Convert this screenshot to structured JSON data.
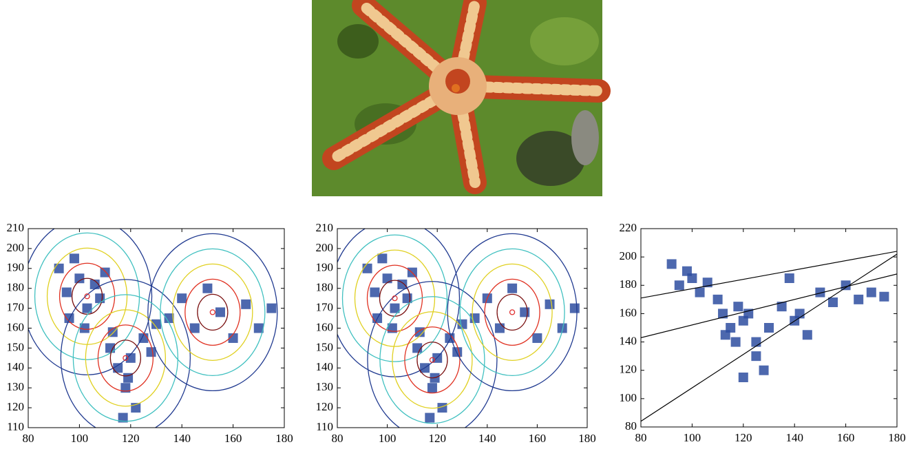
{
  "chart_data": [
    {
      "type": "scatter",
      "xlim": [
        80,
        180
      ],
      "ylim": [
        110,
        210
      ],
      "xticks": [
        80,
        100,
        120,
        140,
        160,
        180
      ],
      "yticks": [
        110,
        120,
        130,
        140,
        150,
        160,
        170,
        180,
        190,
        200,
        210
      ],
      "series": [
        {
          "color": "#2e4ea0",
          "mode": "points",
          "x": [
            92,
            95,
            98,
            100,
            103,
            106,
            108,
            96,
            102,
            110,
            112,
            115,
            118,
            120,
            122,
            125,
            117,
            119,
            113,
            128,
            135,
            140,
            145,
            150,
            155,
            160,
            165,
            170,
            175,
            130
          ],
          "y": [
            190,
            178,
            195,
            185,
            170,
            182,
            175,
            165,
            160,
            188,
            150,
            140,
            130,
            145,
            120,
            155,
            115,
            135,
            158,
            148,
            165,
            175,
            160,
            180,
            168,
            155,
            172,
            160,
            170,
            162
          ]
        },
        {
          "color": "#e03030",
          "mode": "centers",
          "x": [
            103,
            118,
            152
          ],
          "y": [
            176,
            145,
            168
          ]
        }
      ]
    },
    {
      "type": "scatter",
      "xlim": [
        80,
        180
      ],
      "ylim": [
        110,
        210
      ],
      "xticks": [
        80,
        100,
        120,
        140,
        160,
        180
      ],
      "yticks": [
        110,
        120,
        130,
        140,
        150,
        160,
        170,
        180,
        190,
        200,
        210
      ],
      "series": [
        {
          "color": "#2e4ea0",
          "mode": "points",
          "x": [
            92,
            95,
            98,
            100,
            103,
            106,
            108,
            96,
            102,
            110,
            112,
            115,
            118,
            120,
            122,
            125,
            117,
            119,
            113,
            128,
            135,
            140,
            145,
            150,
            155,
            160,
            165,
            170,
            175,
            130
          ],
          "y": [
            190,
            178,
            195,
            185,
            170,
            182,
            175,
            165,
            160,
            188,
            150,
            140,
            130,
            145,
            120,
            155,
            115,
            135,
            158,
            148,
            165,
            175,
            160,
            180,
            168,
            155,
            172,
            160,
            170,
            162
          ]
        },
        {
          "color": "#e03030",
          "mode": "centers",
          "x": [
            103,
            118,
            150
          ],
          "y": [
            175,
            144,
            168
          ]
        }
      ]
    },
    {
      "type": "scatter",
      "xlim": [
        80,
        180
      ],
      "ylim": [
        80,
        220
      ],
      "xticks": [
        80,
        100,
        120,
        140,
        160,
        180
      ],
      "yticks": [
        80,
        100,
        120,
        140,
        160,
        180,
        200,
        220
      ],
      "series": [
        {
          "color": "#2e4ea0",
          "mode": "points",
          "x": [
            92,
            95,
            98,
            100,
            103,
            106,
            110,
            112,
            115,
            118,
            120,
            113,
            117,
            122,
            125,
            128,
            130,
            135,
            140,
            145,
            150,
            155,
            160,
            165,
            170,
            175,
            138,
            142,
            120,
            125
          ],
          "y": [
            195,
            180,
            190,
            185,
            175,
            182,
            170,
            160,
            150,
            165,
            155,
            145,
            140,
            160,
            130,
            120,
            150,
            165,
            155,
            145,
            175,
            168,
            180,
            170,
            175,
            172,
            185,
            160,
            115,
            140
          ]
        },
        {
          "color": "#000000",
          "mode": "line",
          "x": [
            80,
            180
          ],
          "y": [
            171,
            204
          ]
        },
        {
          "color": "#000000",
          "mode": "line",
          "x": [
            80,
            180
          ],
          "y": [
            143,
            188
          ]
        },
        {
          "color": "#000000",
          "mode": "line",
          "x": [
            80,
            180
          ],
          "y": [
            84,
            202
          ]
        }
      ]
    }
  ]
}
